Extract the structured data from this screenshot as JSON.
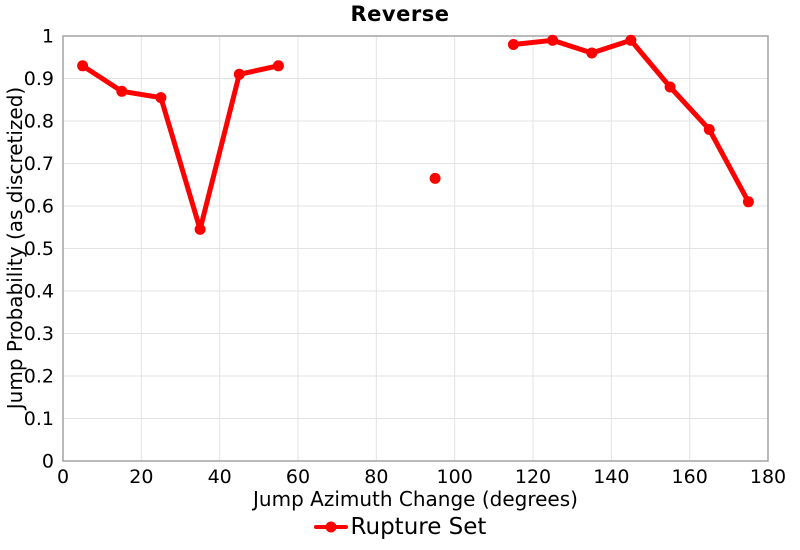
{
  "chart_data": {
    "type": "line",
    "title": "Reverse",
    "xlabel": "Jump Azimuth Change (degrees)",
    "ylabel": "Jump Probability (as discretized)",
    "xlim": [
      0,
      180
    ],
    "ylim": [
      0,
      1
    ],
    "xticks": [
      0,
      20,
      40,
      60,
      80,
      100,
      120,
      140,
      160,
      180
    ],
    "xtick_labels": [
      "0",
      "20",
      "40",
      "60",
      "80",
      "100",
      "120",
      "140",
      "160",
      "180"
    ],
    "yticks": [
      0,
      0.1,
      0.2,
      0.3,
      0.4,
      0.5,
      0.6,
      0.7,
      0.8,
      0.9,
      1
    ],
    "ytick_labels": [
      "0",
      "0.1",
      "0.2",
      "0.3",
      "0.4",
      "0.5",
      "0.6",
      "0.7",
      "0.8",
      "0.9",
      "1"
    ],
    "grid": true,
    "legend_position": "bottom-center",
    "series": [
      {
        "name": "Rupture Set",
        "color": "#ff0000",
        "marker": "circle",
        "x": [
          5,
          15,
          25,
          35,
          45,
          55,
          65,
          75,
          85,
          95,
          105,
          115,
          125,
          135,
          145,
          155,
          165,
          175
        ],
        "y": [
          0.93,
          0.87,
          0.855,
          0.545,
          0.91,
          0.93,
          null,
          null,
          null,
          0.665,
          null,
          0.98,
          0.99,
          0.96,
          0.99,
          0.88,
          0.78,
          0.61
        ]
      }
    ]
  },
  "colors": {
    "line": "#ff0000",
    "grid": "#e3e3e3",
    "axis_border": "#a3a3a3",
    "text": "#000000",
    "background": "#ffffff"
  }
}
